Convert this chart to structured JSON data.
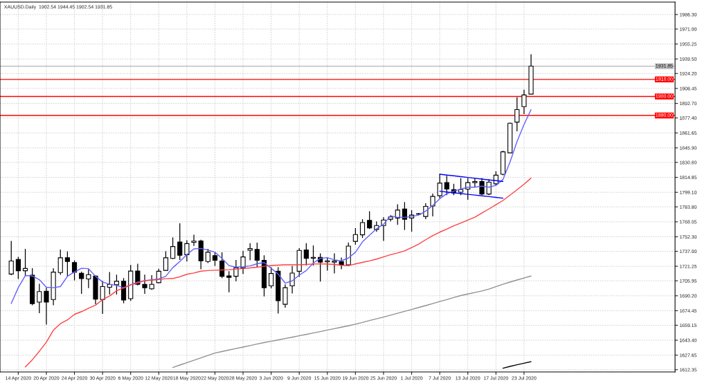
{
  "chart_data": {
    "type": "candlestick",
    "title": "XAUUSD.Daily  1902.54 1944.45 1902.54 1931.85",
    "categories": [
      null,
      "14 Apr 2020",
      null,
      null,
      null,
      "20 Apr 2020",
      null,
      null,
      null,
      "24 Apr 2020",
      null,
      null,
      null,
      "30 Apr 2020",
      null,
      null,
      null,
      "6 May 2020",
      null,
      null,
      null,
      "12 May 2020",
      null,
      null,
      null,
      "18 May 2020",
      null,
      null,
      null,
      "22 May 2020",
      null,
      null,
      null,
      "28 May 2020",
      null,
      null,
      null,
      "3 Jun 2020",
      null,
      null,
      null,
      "9 Jun 2020",
      null,
      null,
      null,
      "15 Jun 2020",
      null,
      null,
      null,
      "19 Jun 2020",
      null,
      null,
      null,
      "25 Jun 2020",
      null,
      null,
      null,
      "1 Jul 2020",
      null,
      null,
      null,
      "7 Jul 2020",
      null,
      null,
      null,
      "13 Jul 2020",
      null,
      null,
      null,
      "17 Jul 2020",
      null,
      null,
      null,
      "23 Jul 2020",
      null,
      null,
      null,
      null,
      null,
      null,
      null,
      null,
      null,
      null,
      null,
      null,
      null,
      null,
      null,
      null,
      null,
      null,
      null,
      null,
      null
    ],
    "color": "#000000",
    "ohlc": [
      [
        1713.1,
        1747.9,
        1711.9,
        1726.8
      ],
      [
        1728.5,
        1731.1,
        1707.9,
        1716.5
      ],
      [
        1716.5,
        1739.6,
        1710.7,
        1718.9
      ],
      [
        1711.9,
        1719.1,
        1680.2,
        1681.9
      ],
      [
        1683.5,
        1702.8,
        1671.8,
        1694.6
      ],
      [
        1694.9,
        1698.7,
        1659.8,
        1683.5
      ],
      [
        1686.2,
        1719.1,
        1680.2,
        1715.1
      ],
      [
        1714.6,
        1738.9,
        1712.2,
        1730.2
      ],
      [
        1730.2,
        1736.9,
        1710.7,
        1726.3
      ],
      [
        1725.2,
        1727.5,
        1706.4,
        1715.1
      ],
      [
        1713.8,
        1715.5,
        1692.2,
        1708.3
      ],
      [
        1707.9,
        1718.0,
        1698.2,
        1712.4
      ],
      [
        1711.0,
        1711.7,
        1681.4,
        1686.7
      ],
      [
        1686.2,
        1705.9,
        1671.1,
        1699.9
      ],
      [
        1699.2,
        1715.1,
        1691.5,
        1702.1
      ],
      [
        1701.8,
        1712.4,
        1691.5,
        1705.4
      ],
      [
        1705.4,
        1708.8,
        1682.3,
        1685.7
      ],
      [
        1687.2,
        1722.7,
        1684.8,
        1716.2
      ],
      [
        1716.2,
        1723.9,
        1701.1,
        1702.3
      ],
      [
        1702.3,
        1712.4,
        1692.2,
        1698.7
      ],
      [
        1697.5,
        1711.9,
        1696.5,
        1702.3
      ],
      [
        1704.0,
        1718.7,
        1703.7,
        1716.0
      ],
      [
        1716.9,
        1737.1,
        1716.5,
        1730.2
      ],
      [
        1729.5,
        1751.6,
        1728.8,
        1742.0
      ],
      [
        1746.8,
        1766.5,
        1728.0,
        1732.8
      ],
      [
        1733.5,
        1748.7,
        1726.3,
        1745.1
      ],
      [
        1746.5,
        1754.4,
        1742.7,
        1747.7
      ],
      [
        1747.9,
        1749.2,
        1718.0,
        1727.0
      ],
      [
        1726.3,
        1739.6,
        1724.7,
        1736.0
      ],
      [
        1732.4,
        1736.0,
        1721.6,
        1727.5
      ],
      [
        1726.8,
        1736.0,
        1708.8,
        1710.7
      ],
      [
        1711.2,
        1716.0,
        1693.9,
        1709.5
      ],
      [
        1710.7,
        1728.0,
        1705.4,
        1719.6
      ],
      [
        1719.6,
        1737.6,
        1713.1,
        1731.1
      ],
      [
        1738.1,
        1745.6,
        1727.5,
        1739.8
      ],
      [
        1738.9,
        1746.1,
        1720.3,
        1727.5
      ],
      [
        1727.5,
        1732.8,
        1689.5,
        1698.7
      ],
      [
        1700.6,
        1720.3,
        1698.0,
        1713.6
      ],
      [
        1716.0,
        1720.3,
        1671.5,
        1685.0
      ],
      [
        1681.2,
        1702.3,
        1677.6,
        1698.7
      ],
      [
        1700.6,
        1721.6,
        1692.7,
        1714.1
      ],
      [
        1716.0,
        1740.3,
        1710.0,
        1737.9
      ],
      [
        1738.4,
        1745.6,
        1722.0,
        1729.5
      ],
      [
        1729.7,
        1743.2,
        1722.0,
        1730.6
      ],
      [
        1730.6,
        1734.8,
        1705.2,
        1725.6
      ],
      [
        1725.9,
        1730.4,
        1716.7,
        1727.0
      ],
      [
        1725.6,
        1734.8,
        1713.8,
        1726.8
      ],
      [
        1726.3,
        1730.4,
        1718.0,
        1722.7
      ],
      [
        1722.7,
        1746.3,
        1721.6,
        1742.5
      ],
      [
        1747.5,
        1761.4,
        1743.9,
        1754.7
      ],
      [
        1754.4,
        1770.8,
        1751.1,
        1767.2
      ],
      [
        1769.6,
        1779.3,
        1760.5,
        1761.7
      ],
      [
        1760.0,
        1768.4,
        1757.6,
        1764.1
      ],
      [
        1764.1,
        1772.8,
        1747.9,
        1769.9
      ],
      [
        1770.8,
        1775.1,
        1768.4,
        1773.2
      ],
      [
        1772.0,
        1786.5,
        1764.8,
        1780.4
      ],
      [
        1781.6,
        1788.8,
        1759.5,
        1770.8
      ],
      [
        1772.0,
        1780.4,
        1757.6,
        1775.1
      ],
      [
        1776.6,
        1777.3,
        1775.4,
        1776.1
      ],
      [
        1773.7,
        1787.6,
        1770.8,
        1784.3
      ],
      [
        1784.7,
        1797.7,
        1773.7,
        1794.8
      ],
      [
        1795.5,
        1818.4,
        1792.4,
        1808.8
      ],
      [
        1809.3,
        1816.5,
        1796.1,
        1802.5
      ],
      [
        1802.0,
        1808.1,
        1796.1,
        1798.4
      ],
      [
        1799.2,
        1814.1,
        1796.1,
        1802.0
      ],
      [
        1802.5,
        1814.1,
        1791.2,
        1809.3
      ],
      [
        1809.3,
        1814.1,
        1804.5,
        1810.5
      ],
      [
        1810.5,
        1814.1,
        1796.1,
        1797.3
      ],
      [
        1797.3,
        1812.9,
        1796.1,
        1809.8
      ],
      [
        1808.1,
        1821.3,
        1806.4,
        1817.2
      ],
      [
        1818.2,
        1842.9,
        1817.0,
        1841.7
      ],
      [
        1840.6,
        1872.5,
        1840.6,
        1871.8
      ],
      [
        1873.0,
        1899.4,
        1863.3,
        1886.2
      ],
      [
        1889.3,
        1907.1,
        1881.4,
        1901.6
      ],
      [
        1902.54,
        1944.45,
        1902.54,
        1931.85
      ],
      null,
      null,
      null,
      null,
      null,
      null,
      null,
      null,
      null,
      null,
      null,
      null,
      null,
      null,
      null,
      null,
      null,
      null,
      null,
      null
    ],
    "series": [
      {
        "type": "line",
        "color": "#6060ff",
        "values": [
          1682.0,
          1698.7,
          1711.5,
          1711.0,
          1707.1,
          1699.2,
          1698.7,
          1699.9,
          1710.7,
          1715.3,
          1719.1,
          1718.7,
          1710.7,
          1704.7,
          1702.3,
          1701.1,
          1698.7,
          1701.8,
          1704.7,
          1705.9,
          1707.1,
          1707.9,
          1710.7,
          1719.8,
          1726.3,
          1733.5,
          1739.6,
          1740.0,
          1738.4,
          1736.0,
          1729.5,
          1722.0,
          1720.3,
          1720.8,
          1721.6,
          1723.9,
          1725.2,
          1719.1,
          1713.1,
          1703.5,
          1705.9,
          1711.9,
          1716.7,
          1724.7,
          1729.5,
          1730.4,
          1728.0,
          1727.0,
          1729.9,
          1736.0,
          1747.0,
          1754.0,
          1760.7,
          1765.5,
          1774.4,
          1772.8,
          1772.8,
          1773.7,
          1775.1,
          1779.3,
          1785.2,
          1792.4,
          1797.7,
          1800.2,
          1802.5,
          1804.5,
          1804.5,
          1805.6,
          1804.5,
          1806.4,
          1812.6,
          1830.9,
          1852.5,
          1870.6,
          1886.2,
          null,
          null,
          null,
          null,
          null,
          null,
          null,
          null,
          null,
          null,
          null,
          null,
          null,
          null,
          null,
          null,
          null,
          null,
          null,
          null
        ]
      },
      {
        "type": "line",
        "color": "#ff4040",
        "values": [
          null,
          null,
          1615.2,
          1622.8,
          1631.8,
          1641.4,
          1654.0,
          1660.8,
          1664.8,
          1670.6,
          1673.5,
          1677.1,
          1680.3,
          1686.1,
          1690.0,
          1695.4,
          1698.3,
          1701.6,
          1703.7,
          1706.3,
          1706.6,
          1707.3,
          1708.2,
          1708.4,
          1710.2,
          1712.8,
          1714.2,
          1716.1,
          1716.7,
          1717.1,
          1717.4,
          1717.6,
          1718.2,
          1718.9,
          1719.5,
          1720.3,
          1721.3,
          1722.1,
          1722.5,
          1722.8,
          1722.8,
          1722.8,
          1723.2,
          1723.6,
          1723.8,
          1723.5,
          1723.2,
          1722.3,
          1721.9,
          1723.7,
          1725.4,
          1726.9,
          1728.8,
          1731.1,
          1733.5,
          1735.3,
          1737.5,
          1740.9,
          1744.5,
          1749.2,
          1753.5,
          1757.2,
          1760.4,
          1763.9,
          1766.7,
          1769.9,
          1773.0,
          1777.3,
          1781.6,
          1786.1,
          1790.5,
          1796.1,
          1801.8,
          1807.6,
          1814.1,
          null,
          null,
          null,
          null,
          null,
          null,
          null,
          null,
          null,
          null,
          null,
          null,
          null,
          null,
          null,
          null,
          null,
          null,
          null,
          null
        ]
      },
      {
        "type": "line",
        "color": "#909090",
        "values": [
          null,
          null,
          null,
          null,
          null,
          null,
          null,
          null,
          null,
          null,
          null,
          null,
          null,
          null,
          null,
          null,
          null,
          null,
          null,
          null,
          null,
          null,
          null,
          1614.7,
          1617.3,
          1619.8,
          1622.3,
          1624.8,
          1627.4,
          1629.9,
          1631.5,
          1633.1,
          1634.7,
          1636.2,
          1637.8,
          1639.4,
          1640.9,
          1642.3,
          1643.7,
          1645.2,
          1646.6,
          1648.1,
          1649.5,
          1651.0,
          1652.5,
          1654.1,
          1655.6,
          1657.1,
          1658.6,
          1660.3,
          1662.1,
          1664.1,
          1666.0,
          1667.8,
          1669.8,
          1671.8,
          1673.8,
          1675.8,
          1677.9,
          1679.9,
          1682.0,
          1684.1,
          1686.1,
          1688.3,
          1690.4,
          1692.1,
          1693.6,
          1695.2,
          1697.3,
          1699.8,
          1702.3,
          1704.6,
          1706.8,
          1708.9,
          1711.0,
          null,
          null,
          null,
          null,
          null,
          null,
          null,
          null,
          null,
          null,
          null,
          null,
          null,
          null,
          null,
          null,
          null,
          null,
          null,
          null
        ]
      },
      {
        "type": "line",
        "color": "#000000",
        "values": [
          null,
          null,
          null,
          null,
          null,
          null,
          null,
          null,
          null,
          null,
          null,
          null,
          null,
          null,
          null,
          null,
          null,
          null,
          null,
          null,
          null,
          null,
          null,
          null,
          null,
          null,
          null,
          null,
          null,
          null,
          null,
          null,
          null,
          null,
          null,
          null,
          null,
          null,
          null,
          null,
          null,
          null,
          null,
          null,
          null,
          null,
          null,
          null,
          null,
          null,
          null,
          null,
          null,
          null,
          null,
          null,
          null,
          null,
          null,
          null,
          null,
          null,
          null,
          null,
          null,
          null,
          null,
          null,
          null,
          null,
          1613.9,
          1615.8,
          1617.6,
          1619.2,
          1620.8,
          null,
          null,
          null,
          null,
          null,
          null,
          null,
          null,
          null,
          null,
          null,
          null,
          null,
          null,
          null,
          null,
          null,
          null,
          null,
          null
        ]
      },
      {
        "type": "line",
        "color": "#0000ff",
        "values": [
          null,
          null,
          null,
          null,
          null,
          null,
          null,
          null,
          null,
          null,
          null,
          null,
          null,
          null,
          null,
          null,
          null,
          null,
          null,
          null,
          null,
          null,
          null,
          null,
          null,
          null,
          null,
          null,
          null,
          null,
          null,
          null,
          null,
          null,
          null,
          null,
          null,
          null,
          null,
          null,
          null,
          null,
          null,
          null,
          null,
          null,
          null,
          null,
          null,
          null,
          null,
          null,
          null,
          null,
          null,
          null,
          null,
          null,
          null,
          null,
          null,
          1818.2,
          1817.3,
          1816.5,
          1815.6,
          1814.8,
          1813.9,
          1813.1,
          1812.2,
          1811.4,
          1810.5,
          null,
          null,
          null,
          null,
          null,
          null,
          null,
          null,
          null,
          null,
          null,
          null,
          null,
          null,
          null,
          null,
          null,
          null,
          null,
          null,
          null,
          null,
          null,
          null
        ]
      },
      {
        "type": "line",
        "color": "#0000ff",
        "values": [
          null,
          null,
          null,
          null,
          null,
          null,
          null,
          null,
          null,
          null,
          null,
          null,
          null,
          null,
          null,
          null,
          null,
          null,
          null,
          null,
          null,
          null,
          null,
          null,
          null,
          null,
          null,
          null,
          null,
          null,
          null,
          null,
          null,
          null,
          null,
          null,
          null,
          null,
          null,
          null,
          null,
          null,
          null,
          null,
          null,
          null,
          null,
          null,
          null,
          null,
          null,
          null,
          null,
          null,
          null,
          null,
          null,
          null,
          null,
          null,
          null,
          1800.2,
          1799.4,
          1798.6,
          1797.8,
          1797.0,
          1796.2,
          1795.4,
          1794.6,
          1793.8,
          1793.0,
          null,
          null,
          null,
          null,
          null,
          null,
          null,
          null,
          null,
          null,
          null,
          null,
          null,
          null,
          null,
          null,
          null,
          null,
          null,
          null,
          null,
          null,
          null,
          null
        ]
      }
    ],
    "ref_lines": [
      {
        "axis": "y",
        "value": 1931.85,
        "label": "1931.85",
        "color": "#c0c0c0"
      },
      {
        "axis": "y",
        "value": 1918,
        "label": "1918.00",
        "color": "#ff0000"
      },
      {
        "axis": "y",
        "value": 1900,
        "label": "1900.00",
        "color": "#ff0000"
      },
      {
        "axis": "y",
        "value": 1880,
        "label": "1880.00",
        "color": "#ff0000"
      }
    ],
    "ylim": [
      1610.0,
      1999.4
    ],
    "yticks": [
      {
        "value": 1986.3,
        "label": "1986.30"
      },
      {
        "value": 1971,
        "label": "1971.00"
      },
      {
        "value": 1955.25,
        "label": "1955.25"
      },
      {
        "value": 1939.5,
        "label": "1939.50"
      },
      {
        "value": 1924.2,
        "label": "1924.20"
      },
      {
        "value": 1908.45,
        "label": "1908.45"
      },
      {
        "value": 1892.7,
        "label": "1892.70"
      },
      {
        "value": 1877.4,
        "label": "1877.40"
      },
      {
        "value": 1861.65,
        "label": "1861.65"
      },
      {
        "value": 1845.9,
        "label": "1845.90"
      },
      {
        "value": 1830.6,
        "label": "1830.60"
      },
      {
        "value": 1814.85,
        "label": "1814.85"
      },
      {
        "value": 1799.1,
        "label": "1799.10"
      },
      {
        "value": 1783.8,
        "label": "1783.80"
      },
      {
        "value": 1768.05,
        "label": "1768.05"
      },
      {
        "value": 1752.3,
        "label": "1752.30"
      },
      {
        "value": 1737,
        "label": "1737.00"
      },
      {
        "value": 1721.25,
        "label": "1721.25"
      },
      {
        "value": 1705.95,
        "label": "1705.95"
      },
      {
        "value": 1690.2,
        "label": "1690.20"
      },
      {
        "value": 1674.45,
        "label": "1674.45"
      },
      {
        "value": 1659.15,
        "label": "1659.15"
      },
      {
        "value": 1643.4,
        "label": "1643.40"
      },
      {
        "value": 1627.65,
        "label": "1627.65"
      },
      {
        "value": 1612.35,
        "label": "1612.35"
      }
    ],
    "grid": true
  }
}
